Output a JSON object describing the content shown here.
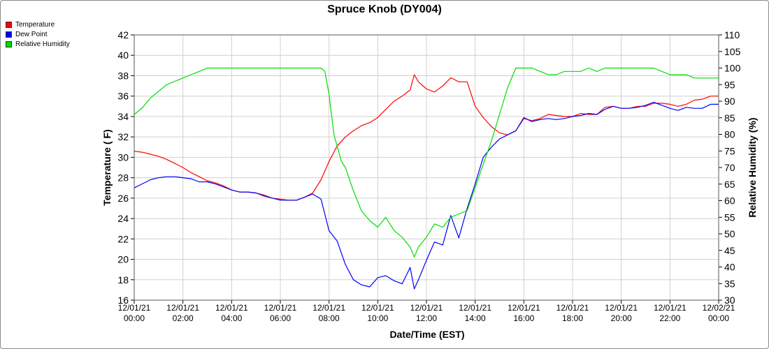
{
  "chart_data": {
    "type": "line",
    "title": "Spruce Knob (DY004)",
    "xlabel": "Date/Time (EST)",
    "ylabel": "Temperature ( F)",
    "y2label": "Relative Humidity (%)",
    "ylim": [
      16,
      42
    ],
    "y2lim": [
      30,
      110
    ],
    "yticks": [
      "16",
      "18",
      "20",
      "22",
      "24",
      "26",
      "28",
      "30",
      "32",
      "34",
      "36",
      "38",
      "40",
      "42"
    ],
    "y2ticks": [
      "30",
      "35",
      "40",
      "45",
      "50",
      "55",
      "60",
      "65",
      "70",
      "75",
      "80",
      "85",
      "90",
      "95",
      "100",
      "105",
      "110"
    ],
    "xlim": [
      0,
      24
    ],
    "xticks": [
      {
        "line1": "12/01/21",
        "line2": "00:00"
      },
      {
        "line1": "12/01/21",
        "line2": "02:00"
      },
      {
        "line1": "12/01/21",
        "line2": "04:00"
      },
      {
        "line1": "12/01/21",
        "line2": "06:00"
      },
      {
        "line1": "12/01/21",
        "line2": "08:00"
      },
      {
        "line1": "12/01/21",
        "line2": "10:00"
      },
      {
        "line1": "12/01/21",
        "line2": "12:00"
      },
      {
        "line1": "12/01/21",
        "line2": "14:00"
      },
      {
        "line1": "12/01/21",
        "line2": "16:00"
      },
      {
        "line1": "12/01/21",
        "line2": "18:00"
      },
      {
        "line1": "12/01/21",
        "line2": "20:00"
      },
      {
        "line1": "12/01/21",
        "line2": "22:00"
      },
      {
        "line1": "12/02/21",
        "line2": "00:00"
      }
    ],
    "grid": true,
    "legend_position": "top-left",
    "series": [
      {
        "name": "Temperature",
        "color": "#ff0000",
        "axis": "left",
        "points": [
          [
            0,
            30.6
          ],
          [
            0.33,
            30.5
          ],
          [
            0.67,
            30.3
          ],
          [
            1,
            30.1
          ],
          [
            1.33,
            29.8
          ],
          [
            1.67,
            29.4
          ],
          [
            2,
            29.0
          ],
          [
            2.33,
            28.5
          ],
          [
            2.67,
            28.1
          ],
          [
            3,
            27.7
          ],
          [
            3.33,
            27.5
          ],
          [
            3.67,
            27.2
          ],
          [
            4,
            26.8
          ],
          [
            4.33,
            26.6
          ],
          [
            4.67,
            26.6
          ],
          [
            5,
            26.5
          ],
          [
            5.33,
            26.3
          ],
          [
            5.67,
            26.0
          ],
          [
            6,
            25.9
          ],
          [
            6.33,
            25.8
          ],
          [
            6.67,
            25.8
          ],
          [
            7,
            26.1
          ],
          [
            7.33,
            26.5
          ],
          [
            7.67,
            27.8
          ],
          [
            8,
            29.6
          ],
          [
            8.33,
            31.1
          ],
          [
            8.67,
            32.0
          ],
          [
            9,
            32.6
          ],
          [
            9.33,
            33.1
          ],
          [
            9.67,
            33.4
          ],
          [
            10,
            33.9
          ],
          [
            10.33,
            34.7
          ],
          [
            10.67,
            35.5
          ],
          [
            11,
            36.0
          ],
          [
            11.33,
            36.6
          ],
          [
            11.5,
            38.1
          ],
          [
            11.67,
            37.4
          ],
          [
            12,
            36.7
          ],
          [
            12.33,
            36.4
          ],
          [
            12.67,
            37.0
          ],
          [
            13,
            37.8
          ],
          [
            13.33,
            37.4
          ],
          [
            13.67,
            37.4
          ],
          [
            14,
            35.0
          ],
          [
            14.33,
            33.9
          ],
          [
            14.67,
            33.0
          ],
          [
            15,
            32.4
          ],
          [
            15.33,
            32.2
          ],
          [
            15.67,
            32.6
          ],
          [
            16,
            33.8
          ],
          [
            16.33,
            33.6
          ],
          [
            16.67,
            33.8
          ],
          [
            17,
            34.2
          ],
          [
            17.33,
            34.1
          ],
          [
            17.67,
            34.0
          ],
          [
            18,
            34.0
          ],
          [
            18.33,
            34.3
          ],
          [
            18.67,
            34.2
          ],
          [
            19,
            34.2
          ],
          [
            19.33,
            34.9
          ],
          [
            19.67,
            35.0
          ],
          [
            20,
            34.8
          ],
          [
            20.33,
            34.8
          ],
          [
            20.67,
            35.0
          ],
          [
            21,
            35.0
          ],
          [
            21.33,
            35.3
          ],
          [
            21.67,
            35.3
          ],
          [
            22,
            35.2
          ],
          [
            22.33,
            35.0
          ],
          [
            22.67,
            35.2
          ],
          [
            23,
            35.6
          ],
          [
            23.33,
            35.7
          ],
          [
            23.67,
            36.0
          ],
          [
            24,
            36.0
          ]
        ]
      },
      {
        "name": "Dew Point",
        "color": "#0000ff",
        "axis": "left",
        "points": [
          [
            0,
            27.0
          ],
          [
            0.33,
            27.4
          ],
          [
            0.67,
            27.8
          ],
          [
            1,
            28.0
          ],
          [
            1.33,
            28.1
          ],
          [
            1.67,
            28.1
          ],
          [
            2,
            28.0
          ],
          [
            2.33,
            27.9
          ],
          [
            2.67,
            27.6
          ],
          [
            3,
            27.6
          ],
          [
            3.33,
            27.4
          ],
          [
            3.67,
            27.1
          ],
          [
            4,
            26.8
          ],
          [
            4.33,
            26.6
          ],
          [
            4.67,
            26.6
          ],
          [
            5,
            26.5
          ],
          [
            5.33,
            26.2
          ],
          [
            5.67,
            26.0
          ],
          [
            6,
            25.8
          ],
          [
            6.33,
            25.8
          ],
          [
            6.67,
            25.8
          ],
          [
            7,
            26.1
          ],
          [
            7.33,
            26.4
          ],
          [
            7.67,
            25.9
          ],
          [
            8,
            22.8
          ],
          [
            8.33,
            21.8
          ],
          [
            8.67,
            19.5
          ],
          [
            9,
            18.0
          ],
          [
            9.33,
            17.5
          ],
          [
            9.67,
            17.3
          ],
          [
            10,
            18.2
          ],
          [
            10.33,
            18.4
          ],
          [
            10.67,
            17.9
          ],
          [
            11,
            17.6
          ],
          [
            11.33,
            19.2
          ],
          [
            11.5,
            17.1
          ],
          [
            11.67,
            18.0
          ],
          [
            12,
            19.9
          ],
          [
            12.33,
            21.7
          ],
          [
            12.67,
            21.4
          ],
          [
            13,
            24.3
          ],
          [
            13.33,
            22.1
          ],
          [
            13.67,
            25.0
          ],
          [
            14,
            27.4
          ],
          [
            14.33,
            30.0
          ],
          [
            14.67,
            31.0
          ],
          [
            15,
            31.8
          ],
          [
            15.33,
            32.2
          ],
          [
            15.67,
            32.6
          ],
          [
            16,
            33.9
          ],
          [
            16.33,
            33.5
          ],
          [
            16.67,
            33.7
          ],
          [
            17,
            33.8
          ],
          [
            17.33,
            33.7
          ],
          [
            17.67,
            33.8
          ],
          [
            18,
            34.0
          ],
          [
            18.33,
            34.1
          ],
          [
            18.67,
            34.3
          ],
          [
            19,
            34.2
          ],
          [
            19.33,
            34.7
          ],
          [
            19.67,
            35.0
          ],
          [
            20,
            34.8
          ],
          [
            20.33,
            34.8
          ],
          [
            20.67,
            34.9
          ],
          [
            21,
            35.1
          ],
          [
            21.33,
            35.4
          ],
          [
            21.67,
            35.1
          ],
          [
            22,
            34.8
          ],
          [
            22.33,
            34.6
          ],
          [
            22.67,
            34.9
          ],
          [
            23,
            34.8
          ],
          [
            23.33,
            34.8
          ],
          [
            23.67,
            35.2
          ],
          [
            24,
            35.2
          ]
        ]
      },
      {
        "name": "Relative Humidity",
        "color": "#00dd00",
        "axis": "right",
        "points": [
          [
            0,
            86
          ],
          [
            0.33,
            88
          ],
          [
            0.67,
            91
          ],
          [
            1,
            93
          ],
          [
            1.33,
            95
          ],
          [
            1.67,
            96
          ],
          [
            2,
            97
          ],
          [
            2.33,
            98
          ],
          [
            2.67,
            99
          ],
          [
            3,
            100
          ],
          [
            4,
            100
          ],
          [
            5,
            100
          ],
          [
            6,
            100
          ],
          [
            7,
            100
          ],
          [
            7.67,
            100
          ],
          [
            7.83,
            99
          ],
          [
            8,
            92
          ],
          [
            8.2,
            80
          ],
          [
            8.5,
            72
          ],
          [
            8.67,
            70
          ],
          [
            9,
            63
          ],
          [
            9.33,
            57
          ],
          [
            9.67,
            54
          ],
          [
            10,
            52
          ],
          [
            10.33,
            55
          ],
          [
            10.67,
            51
          ],
          [
            11,
            49
          ],
          [
            11.33,
            46
          ],
          [
            11.5,
            43
          ],
          [
            11.67,
            46
          ],
          [
            12,
            49
          ],
          [
            12.33,
            53
          ],
          [
            12.67,
            52
          ],
          [
            13,
            55
          ],
          [
            13.33,
            56
          ],
          [
            13.67,
            57
          ],
          [
            14,
            64
          ],
          [
            14.33,
            71
          ],
          [
            14.67,
            78
          ],
          [
            15,
            86
          ],
          [
            15.33,
            94
          ],
          [
            15.67,
            100
          ],
          [
            16,
            100
          ],
          [
            16.33,
            100
          ],
          [
            16.67,
            99
          ],
          [
            17,
            98
          ],
          [
            17.33,
            98
          ],
          [
            17.67,
            99
          ],
          [
            18,
            99
          ],
          [
            18.33,
            99
          ],
          [
            18.67,
            100
          ],
          [
            19,
            99
          ],
          [
            19.33,
            100
          ],
          [
            19.67,
            100
          ],
          [
            20,
            100
          ],
          [
            20.33,
            100
          ],
          [
            20.67,
            100
          ],
          [
            21,
            100
          ],
          [
            21.33,
            100
          ],
          [
            21.67,
            99
          ],
          [
            22,
            98
          ],
          [
            22.33,
            98
          ],
          [
            22.67,
            98
          ],
          [
            23,
            97
          ],
          [
            23.33,
            97
          ],
          [
            23.67,
            97
          ],
          [
            24,
            97
          ]
        ]
      }
    ]
  }
}
